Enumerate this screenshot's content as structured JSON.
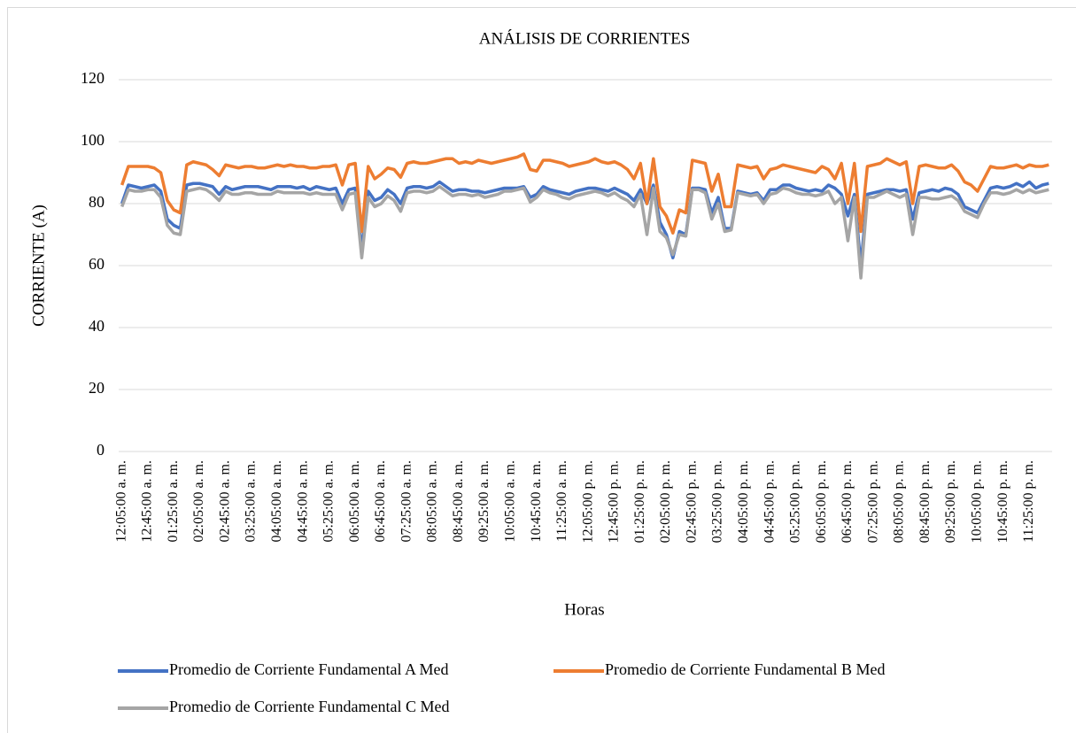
{
  "chart_data": {
    "type": "line",
    "title": "ANÁLISIS DE CORRIENTES",
    "x_label": "Horas",
    "y_label": "CORRIENTE (A)",
    "categories": [
      "12:05:00 a. m.",
      null,
      null,
      null,
      "12:45:00 a. m.",
      null,
      null,
      null,
      "01:25:00 a. m.",
      null,
      null,
      null,
      "02:05:00 a. m.",
      null,
      null,
      null,
      "02:45:00 a. m.",
      null,
      null,
      null,
      "03:25:00 a. m.",
      null,
      null,
      null,
      "04:05:00 a. m.",
      null,
      null,
      null,
      "04:45:00 a. m.",
      null,
      null,
      null,
      "05:25:00 a. m.",
      null,
      null,
      null,
      "06:05:00 a. m.",
      null,
      null,
      null,
      "06:45:00 a. m.",
      null,
      null,
      null,
      "07:25:00 a. m.",
      null,
      null,
      null,
      "08:05:00 a. m.",
      null,
      null,
      null,
      "08:45:00 a. m.",
      null,
      null,
      null,
      "09:25:00 a. m.",
      null,
      null,
      null,
      "10:05:00 a. m.",
      null,
      null,
      null,
      "10:45:00 a. m.",
      null,
      null,
      null,
      "11:25:00 a. m.",
      null,
      null,
      null,
      "12:05:00 p. m.",
      null,
      null,
      null,
      "12:45:00 p. m.",
      null,
      null,
      null,
      "01:25:00 p. m.",
      null,
      null,
      null,
      "02:05:00 p. m.",
      null,
      null,
      null,
      "02:45:00 p. m.",
      null,
      null,
      null,
      "03:25:00 p. m.",
      null,
      null,
      null,
      "04:05:00 p. m.",
      null,
      null,
      null,
      "04:45:00 p. m.",
      null,
      null,
      null,
      "05:25:00 p. m.",
      null,
      null,
      null,
      "06:05:00 p. m.",
      null,
      null,
      null,
      "06:45:00 p. m.",
      null,
      null,
      null,
      "07:25:00 p. m.",
      null,
      null,
      null,
      "08:05:00 p. m.",
      null,
      null,
      null,
      "08:45:00 p. m.",
      null,
      null,
      null,
      "09:25:00 p. m.",
      null,
      null,
      null,
      "10:05:00 p. m.",
      null,
      null,
      null,
      "10:45:00 p. m.",
      null,
      null,
      null,
      "11:25:00 p. m.",
      null,
      null,
      null
    ],
    "series": [
      {
        "name": "Promedio de Corriente Fundamental A Med",
        "color": "#4472c4",
        "values": [
          80,
          86,
          85.5,
          85,
          85.5,
          86,
          84,
          75,
          73,
          72,
          86,
          86.5,
          86.5,
          86,
          85.5,
          83,
          85.5,
          84.5,
          85,
          85.5,
          85.5,
          85.5,
          85,
          84.5,
          85.5,
          85.5,
          85.5,
          85,
          85.5,
          84.5,
          85.5,
          85,
          84.5,
          85,
          80,
          84.5,
          85,
          65,
          84,
          81,
          82,
          84.5,
          83,
          80,
          85,
          85.5,
          85.5,
          85,
          85.5,
          87,
          85.5,
          84,
          84.5,
          84.5,
          84,
          84,
          83.5,
          84,
          84.5,
          85,
          85,
          85,
          85.5,
          82,
          83,
          85.5,
          84.5,
          84,
          83.5,
          83,
          84,
          84.5,
          85,
          85,
          84.5,
          84,
          85,
          84,
          83,
          81,
          84.5,
          80,
          86,
          74,
          70,
          62.5,
          71,
          70,
          85,
          85,
          84.5,
          77,
          82,
          72,
          72,
          84,
          83.5,
          83,
          83.5,
          81,
          84.5,
          84.5,
          86,
          86,
          85,
          84.5,
          84,
          84.5,
          84,
          86,
          85,
          83,
          76,
          83,
          60,
          83,
          83.5,
          84,
          84.5,
          84.5,
          84,
          84.5,
          75,
          83.5,
          84,
          84.5,
          84,
          85,
          84.5,
          83,
          79,
          78,
          77,
          81,
          85,
          85.5,
          85,
          85.5,
          86.5,
          85.5,
          87,
          85,
          86,
          86.5
        ]
      },
      {
        "name": "Promedio de Corriente Fundamental B Med",
        "color": "#ed7d31",
        "values": [
          86,
          92,
          92,
          92,
          92,
          91.5,
          90,
          81,
          78,
          77,
          92.5,
          93.5,
          93,
          92.5,
          91,
          89,
          92.5,
          92,
          91.5,
          92,
          92,
          91.5,
          91.5,
          92,
          92.5,
          92,
          92.5,
          92,
          92,
          91.5,
          91.5,
          92,
          92,
          92.5,
          86,
          92.5,
          93,
          71,
          92,
          88,
          89.5,
          91.5,
          91,
          88.5,
          93,
          93.5,
          93,
          93,
          93.5,
          94,
          94.5,
          94.5,
          93,
          93.5,
          93,
          94,
          93.5,
          93,
          93.5,
          94,
          94.5,
          95,
          96,
          91,
          90.5,
          94,
          94,
          93.5,
          93,
          92,
          92.5,
          93,
          93.5,
          94.5,
          93.5,
          93,
          93.5,
          92.5,
          91,
          88,
          93,
          80,
          94.5,
          79,
          76,
          70.5,
          78,
          77,
          94,
          93.5,
          93,
          84,
          89.5,
          79,
          79,
          92.5,
          92,
          91.5,
          92,
          88,
          91,
          91.5,
          92.5,
          92,
          91.5,
          91,
          90.5,
          90,
          92,
          91,
          88,
          93,
          80,
          93,
          71,
          92,
          92.5,
          93,
          94.5,
          93.5,
          92.5,
          93.5,
          80,
          92,
          92.5,
          92,
          91.5,
          91.5,
          92.5,
          90.5,
          87,
          86,
          84,
          88,
          92,
          91.5,
          91.5,
          92,
          92.5,
          91.5,
          92.5,
          92,
          92,
          92.5
        ]
      },
      {
        "name": "Promedio de Corriente Fundamental C Med",
        "color": "#a5a5a5",
        "values": [
          79,
          84.5,
          84,
          84,
          84.5,
          84.5,
          82,
          73,
          70.5,
          70,
          84,
          84.5,
          85,
          84.5,
          83,
          81,
          84,
          83,
          83,
          83.5,
          83.5,
          83,
          83,
          83,
          84,
          83.5,
          83.5,
          83.5,
          83.5,
          83,
          83.5,
          83,
          83,
          83,
          78,
          83,
          83.5,
          62.5,
          82,
          79,
          80,
          82.5,
          81,
          77.5,
          83.5,
          84,
          84,
          83.5,
          84,
          85.5,
          84,
          82.5,
          83,
          83,
          82.5,
          83,
          82,
          82.5,
          83,
          84,
          84,
          84.5,
          85,
          80.5,
          82,
          84.5,
          83.5,
          83,
          82,
          81.5,
          82.5,
          83,
          83.5,
          84,
          83.5,
          82.5,
          83.5,
          82,
          81,
          79,
          83,
          70,
          85,
          71,
          69,
          63.5,
          70,
          69.5,
          84.5,
          84.5,
          83.5,
          75,
          80,
          71,
          71.5,
          83.5,
          83,
          82.5,
          83,
          80,
          83,
          83.5,
          85,
          84.5,
          83.5,
          83,
          83,
          82.5,
          83,
          84,
          80,
          82,
          68,
          82,
          56,
          82,
          82,
          83,
          84,
          83,
          82,
          83,
          70,
          82,
          82,
          81.5,
          81.5,
          82,
          82.5,
          81,
          77.5,
          76.5,
          75.5,
          80,
          83.5,
          83.5,
          83,
          83.5,
          84.5,
          83.5,
          84.5,
          83.5,
          84,
          84.5
        ]
      }
    ],
    "ylim": [
      0,
      120
    ],
    "yticks": [
      0,
      20,
      40,
      60,
      80,
      100,
      120
    ],
    "grid": true,
    "legend": "bottom"
  }
}
